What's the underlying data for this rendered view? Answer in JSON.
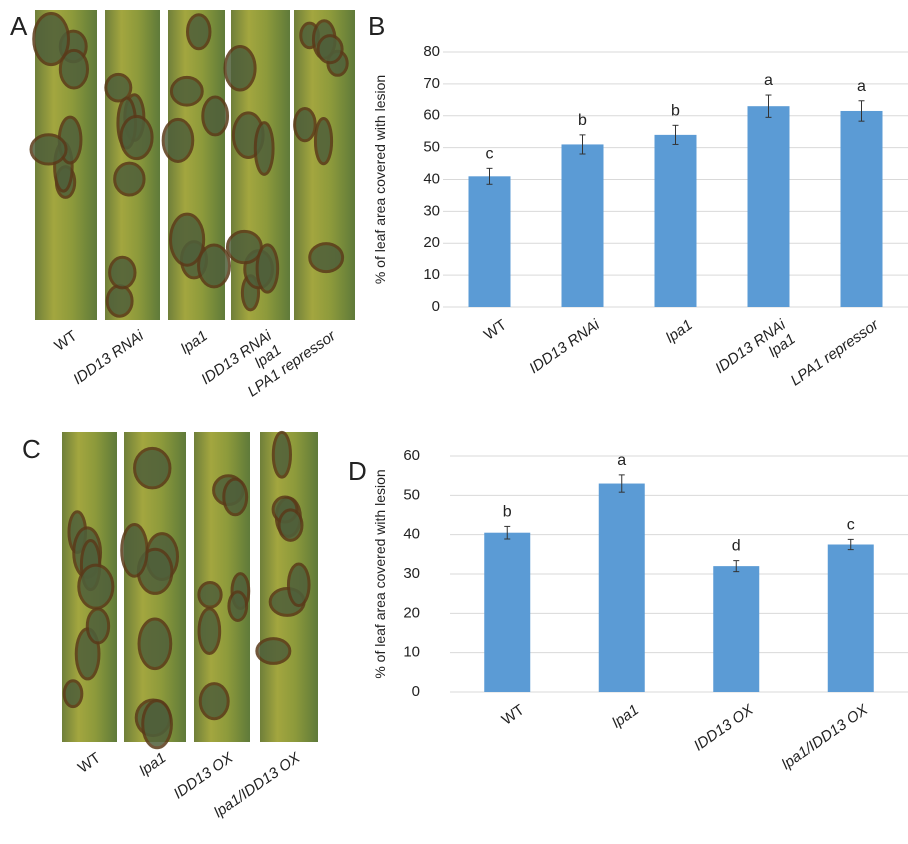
{
  "panel_labels": [
    "A",
    "B",
    "C",
    "D"
  ],
  "photos": [
    {
      "labels": [
        "WT",
        "IDD13 RNAi",
        "lpa1",
        "IDD13 RNAi\nlpa1",
        "LPA1 repressor"
      ]
    },
    {
      "labels": [
        "WT",
        "lpa1",
        "IDD13 OX",
        "lpa1/IDD13 OX"
      ]
    }
  ],
  "chart_data": [
    {
      "type": "bar",
      "y_label": "% of leaf area covered with lesion",
      "categories": [
        "WT",
        "IDD13 RNAi",
        "lpa1",
        "IDD13 RNAi\nlpa1",
        "LPA1 repressor"
      ],
      "values": [
        41,
        51,
        54,
        63,
        61.5
      ],
      "errors": [
        2.5,
        3,
        3,
        3.5,
        3.2
      ],
      "letters": [
        "c",
        "b",
        "b",
        "a",
        "a"
      ],
      "color": "#5b9bd5",
      "ylim": [
        0,
        80
      ],
      "yticks": [
        0,
        10,
        20,
        30,
        40,
        50,
        60,
        70,
        80
      ],
      "grid": true
    },
    {
      "type": "bar",
      "y_label": "% of leaf area covered with lesion",
      "categories": [
        "WT",
        "lpa1",
        "IDD13 OX",
        "lpa1/IDD13 OX"
      ],
      "values": [
        40.5,
        53,
        32,
        37.5
      ],
      "errors": [
        1.6,
        2.2,
        1.4,
        1.3
      ],
      "letters": [
        "b",
        "a",
        "d",
        "c"
      ],
      "color": "#5b9bd5",
      "ylim": [
        0,
        60
      ],
      "yticks": [
        0,
        10,
        20,
        30,
        40,
        50,
        60
      ],
      "grid": true
    }
  ]
}
